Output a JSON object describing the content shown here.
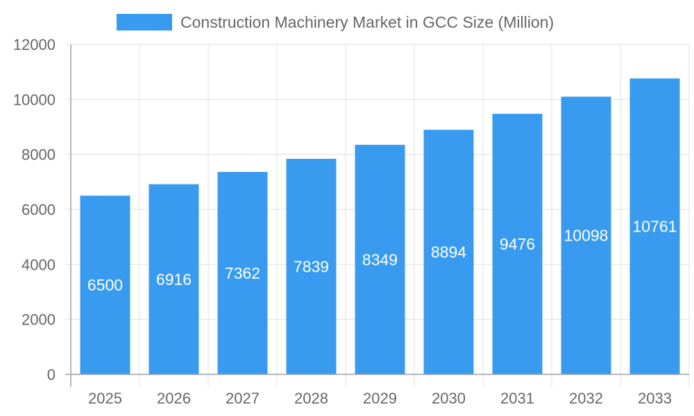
{
  "chart_data": {
    "type": "bar",
    "title": "",
    "xlabel": "",
    "ylabel": "",
    "categories": [
      "2025",
      "2026",
      "2027",
      "2028",
      "2029",
      "2030",
      "2031",
      "2032",
      "2033"
    ],
    "series": [
      {
        "name": "Construction Machinery Market in GCC Size (Million)",
        "values": [
          6500,
          6916,
          7362,
          7839,
          8349,
          8894,
          9476,
          10098,
          10761
        ]
      }
    ],
    "ylim": [
      0,
      12000
    ],
    "yticks": [
      0,
      2000,
      4000,
      6000,
      8000,
      10000,
      12000
    ],
    "grid": true,
    "legend": "top",
    "data_labels": true,
    "colors": {
      "bar": "#389BEF",
      "grid": "#E0E0E0",
      "axis": "#A0A0A0",
      "text": "#666666"
    }
  }
}
